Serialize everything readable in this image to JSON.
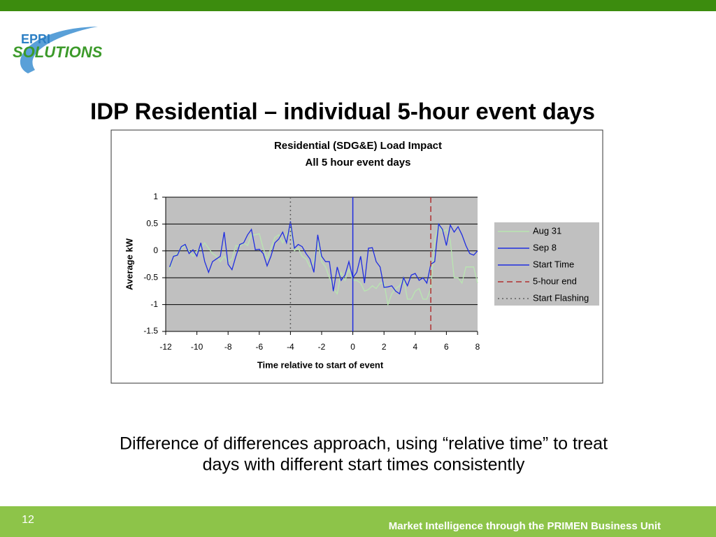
{
  "logo": {
    "line1": "EPRI",
    "line2": "SOLUTIONS"
  },
  "slide_title": "IDP Residential – individual 5-hour event days",
  "caption": [
    "Difference of differences approach, using “relative time” to treat",
    "days with different start times consistently"
  ],
  "footer": {
    "page": "12",
    "text": "Market Intelligence through the PRIMEN Business Unit"
  },
  "chart_data": {
    "type": "line",
    "title": [
      "Residential (SDG&E) Load Impact",
      "All 5 hour event days"
    ],
    "x_label": "Time relative to start of event",
    "y_label": "Average kW",
    "xlim": [
      -12,
      8
    ],
    "xticks": [
      -12,
      -10,
      -8,
      -6,
      -4,
      -2,
      0,
      2,
      4,
      6,
      8
    ],
    "ylim": [
      -1.5,
      1
    ],
    "yticks": [
      -1.5,
      -1,
      -0.5,
      0,
      0.5,
      1
    ],
    "grid": true,
    "legend": "right",
    "x": [
      -11.75,
      -11.5,
      -11.25,
      -11,
      -10.75,
      -10.5,
      -10.25,
      -10,
      -9.75,
      -9.5,
      -9.25,
      -9,
      -8.75,
      -8.5,
      -8.25,
      -8,
      -7.75,
      -7.5,
      -7.25,
      -7,
      -6.75,
      -6.5,
      -6.25,
      -6,
      -5.75,
      -5.5,
      -5.25,
      -5,
      -4.75,
      -4.5,
      -4.25,
      -4,
      -3.75,
      -3.5,
      -3.25,
      -3,
      -2.75,
      -2.5,
      -2.25,
      -2,
      -1.75,
      -1.5,
      -1.25,
      -1,
      -0.75,
      -0.5,
      -0.25,
      0,
      0.25,
      0.5,
      0.75,
      1,
      1.25,
      1.5,
      1.75,
      2,
      2.25,
      2.5,
      2.75,
      3,
      3.25,
      3.5,
      3.75,
      4,
      4.25,
      4.5,
      4.75,
      5,
      5.25,
      5.5,
      5.75,
      6,
      6.25,
      6.5,
      6.75,
      7,
      7.25,
      7.5,
      7.75,
      8
    ],
    "series": [
      {
        "name": "Aug 31",
        "color": "#b8e6b0",
        "values": [
          -0.35,
          -0.1,
          -0.05,
          0.05,
          0.1,
          0,
          -0.1,
          0,
          0.05,
          0.15,
          0.05,
          -0.05,
          -0.1,
          -0.2,
          -0.1,
          -0.2,
          -0.15,
          0.1,
          0.08,
          0.15,
          0.1,
          0.3,
          0.3,
          0.32,
          0.05,
          -0.15,
          0.05,
          0.25,
          0.3,
          0.15,
          0.3,
          0.45,
          0,
          0.05,
          -0.1,
          -0.15,
          -0.3,
          -0.2,
          0.2,
          -0.2,
          -0.3,
          -0.5,
          -0.7,
          -0.8,
          -0.4,
          -0.55,
          -0.35,
          -0.55,
          -0.55,
          -0.6,
          -0.75,
          -0.72,
          -0.65,
          -0.7,
          -0.6,
          -0.6,
          -1,
          -0.8,
          -0.7,
          -0.65,
          -0.5,
          -0.9,
          -0.9,
          -0.75,
          -0.7,
          -0.9,
          -0.9,
          -0.7,
          0.2,
          0.5,
          0.35,
          0.4,
          0.2,
          -0.5,
          -0.5,
          -0.6,
          -0.3,
          -0.3,
          -0.3,
          -0.6
        ]
      },
      {
        "name": "Sep 8",
        "color": "#1f2de0",
        "values": [
          -0.3,
          -0.1,
          -0.08,
          0.08,
          0.12,
          -0.05,
          0.02,
          -0.1,
          0.15,
          -0.2,
          -0.4,
          -0.2,
          -0.15,
          -0.1,
          0.35,
          -0.25,
          -0.35,
          -0.1,
          0.12,
          0.15,
          0.3,
          0.4,
          0.02,
          0.03,
          -0.05,
          -0.28,
          -0.1,
          0.15,
          0.22,
          0.35,
          0.15,
          0.55,
          0.05,
          0.12,
          0.08,
          -0.05,
          -0.15,
          -0.4,
          0.3,
          -0.1,
          -0.2,
          -0.2,
          -0.75,
          -0.3,
          -0.55,
          -0.45,
          -0.2,
          -0.5,
          -0.4,
          -0.1,
          -0.6,
          0.05,
          0.06,
          -0.2,
          -0.3,
          -0.68,
          -0.67,
          -0.65,
          -0.75,
          -0.8,
          -0.5,
          -0.65,
          -0.45,
          -0.42,
          -0.55,
          -0.5,
          -0.6,
          -0.25,
          -0.2,
          0.5,
          0.4,
          0.1,
          0.48,
          0.35,
          0.45,
          0.3,
          0.1,
          -0.05,
          -0.08,
          0
        ]
      }
    ],
    "vlines": [
      {
        "name": "Start Time",
        "x": 0,
        "color": "#1f2de0",
        "style": "solid"
      },
      {
        "name": "5-hour end",
        "x": 5,
        "color": "#b03030",
        "style": "dashed"
      },
      {
        "name": "Start Flashing",
        "x": -4,
        "color": "#606060",
        "style": "dotted"
      }
    ]
  }
}
